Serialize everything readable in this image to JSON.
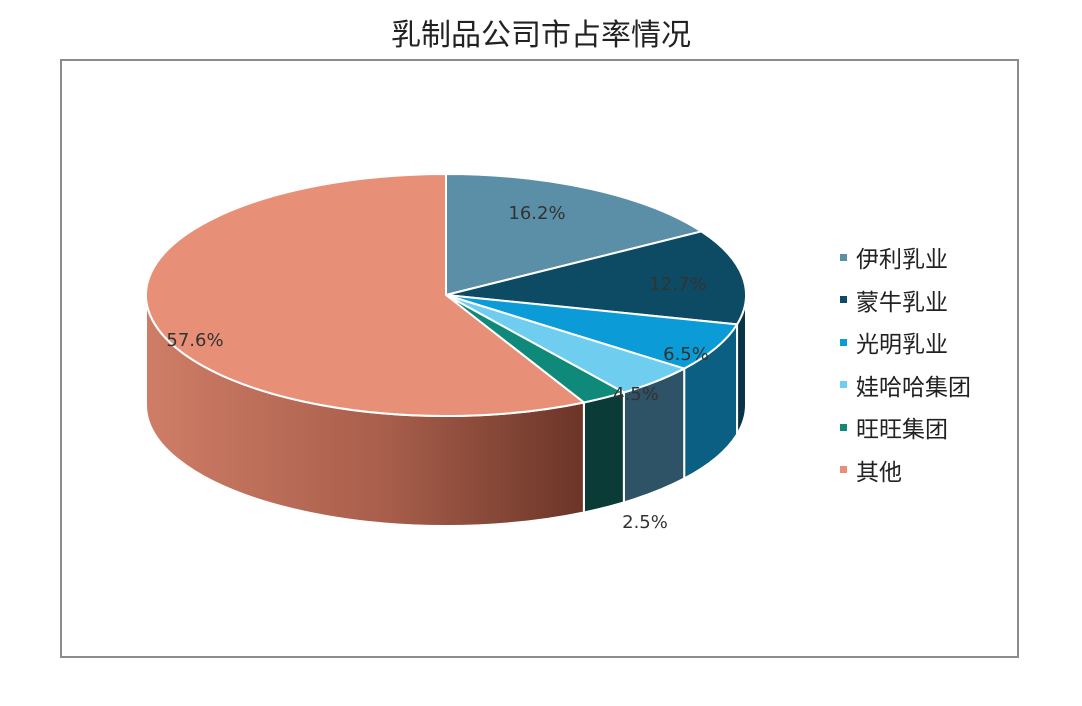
{
  "chart_data": {
    "type": "pie",
    "title": "乳制品公司市占率情况",
    "categories": [
      "伊利乳业",
      "蒙牛乳业",
      "光明乳业",
      "娃哈哈集团",
      "旺旺集团",
      "其他"
    ],
    "values": [
      16.2,
      12.7,
      6.5,
      4.5,
      2.5,
      57.6
    ],
    "labels": [
      "16.2%",
      "12.7%",
      "6.5%",
      "4.5%",
      "2.5%",
      "57.6%"
    ],
    "colors": [
      "#5b8fa8",
      "#0d4a63",
      "#0b9bd6",
      "#6fcdf0",
      "#0f8a7a",
      "#e88f78"
    ],
    "legend_position": "right",
    "style": "3d"
  }
}
